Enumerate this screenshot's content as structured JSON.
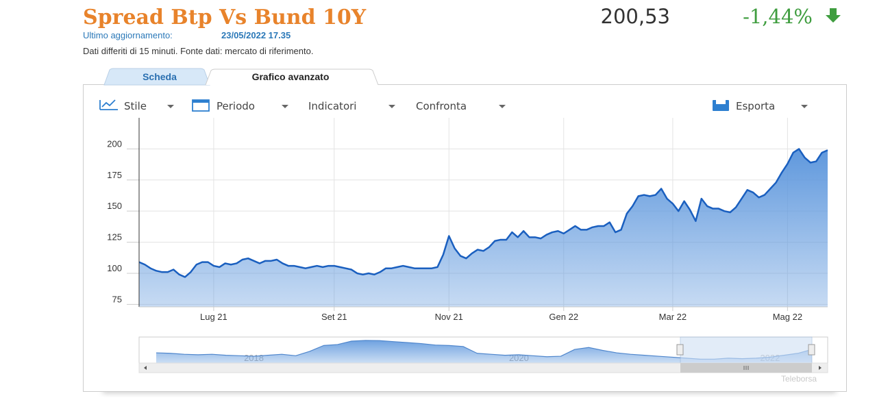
{
  "header": {
    "title": "Spread Btp Vs Bund 10Y",
    "price": "200,53",
    "change": "-1,44%",
    "update_label": "Ultimo aggiornamento:",
    "update_value": "23/05/2022 17.35",
    "note": "Dati differiti di 15 minuti.  Fonte dati: mercato di riferimento."
  },
  "tabs": [
    "Scheda",
    "Grafico avanzato"
  ],
  "toolbar": [
    "Stile",
    "Periodo",
    "Indicatori",
    "Confronta",
    "Esporta"
  ],
  "credit": "Teleborsa",
  "chart_data": [
    {
      "type": "area",
      "color": "#1a5fbf",
      "fill": "#5f98dd",
      "grid": true,
      "ylim": [
        73,
        225
      ],
      "yticks": [
        75,
        100,
        125,
        150,
        175,
        200
      ],
      "categories": [
        null,
        null,
        null,
        null,
        null,
        null,
        null,
        null,
        null,
        null,
        null,
        null,
        null,
        "Lug 21",
        null,
        null,
        null,
        null,
        null,
        null,
        null,
        null,
        null,
        null,
        null,
        null,
        null,
        null,
        null,
        null,
        null,
        null,
        null,
        null,
        "Set 21",
        null,
        null,
        null,
        null,
        null,
        null,
        null,
        null,
        null,
        null,
        null,
        null,
        null,
        null,
        null,
        null,
        null,
        null,
        null,
        "Nov 21",
        null,
        null,
        null,
        null,
        null,
        null,
        null,
        null,
        null,
        null,
        null,
        null,
        null,
        null,
        null,
        null,
        null,
        null,
        null,
        "Gen 22",
        null,
        null,
        null,
        null,
        null,
        null,
        null,
        null,
        null,
        null,
        null,
        null,
        null,
        null,
        null,
        null,
        null,
        null,
        "Mar 22",
        null,
        null,
        null,
        null,
        null,
        null,
        null,
        null,
        null,
        null,
        null,
        null,
        null,
        null,
        null,
        null,
        null,
        null,
        null,
        "Mag 22",
        null,
        null,
        null,
        null,
        null,
        null,
        null
      ],
      "values": [
        109,
        107,
        104,
        102,
        101,
        101,
        103,
        99,
        97,
        101,
        107,
        109,
        109,
        106,
        105,
        108,
        107,
        108,
        111,
        112,
        110,
        108,
        110,
        110,
        111,
        108,
        106,
        106,
        105,
        104,
        105,
        106,
        105,
        106,
        106,
        105,
        104,
        103,
        100,
        99,
        100,
        99,
        101,
        104,
        104,
        105,
        106,
        105,
        104,
        104,
        104,
        104,
        105,
        115,
        130,
        120,
        114,
        112,
        116,
        119,
        118,
        121,
        126,
        127,
        127,
        133,
        129,
        134,
        129,
        129,
        128,
        131,
        133,
        134,
        132,
        135,
        138,
        135,
        135,
        137,
        138,
        138,
        141,
        133,
        135,
        148,
        154,
        162,
        163,
        162,
        163,
        168,
        160,
        156,
        150,
        158,
        151,
        142,
        160,
        154,
        152,
        152,
        150,
        149,
        153,
        160,
        167,
        165,
        161,
        163,
        168,
        173,
        181,
        188,
        197,
        200,
        193,
        189,
        190,
        197,
        199
      ]
    },
    {
      "type": "area",
      "color": "#4f86cc",
      "fill": "#6fa2e0",
      "grid": false,
      "ylim": [
        60,
        320
      ],
      "categories": [
        null,
        null,
        null,
        null,
        null,
        null,
        null,
        "2018",
        null,
        null,
        null,
        null,
        null,
        null,
        null,
        null,
        null,
        null,
        null,
        null,
        null,
        null,
        null,
        null,
        null,
        null,
        "2020",
        null,
        null,
        null,
        null,
        null,
        null,
        null,
        null,
        null,
        null,
        null,
        null,
        null,
        null,
        null,
        null,
        null,
        "2022",
        null,
        null,
        null
      ],
      "values": [
        165,
        160,
        150,
        145,
        150,
        140,
        135,
        130,
        140,
        150,
        135,
        180,
        240,
        250,
        285,
        292,
        290,
        280,
        270,
        260,
        245,
        240,
        230,
        160,
        150,
        140,
        145,
        135,
        125,
        130,
        200,
        220,
        190,
        165,
        150,
        140,
        130,
        120,
        110,
        100,
        100,
        110,
        105,
        110,
        120,
        140,
        160,
        200
      ]
    }
  ]
}
